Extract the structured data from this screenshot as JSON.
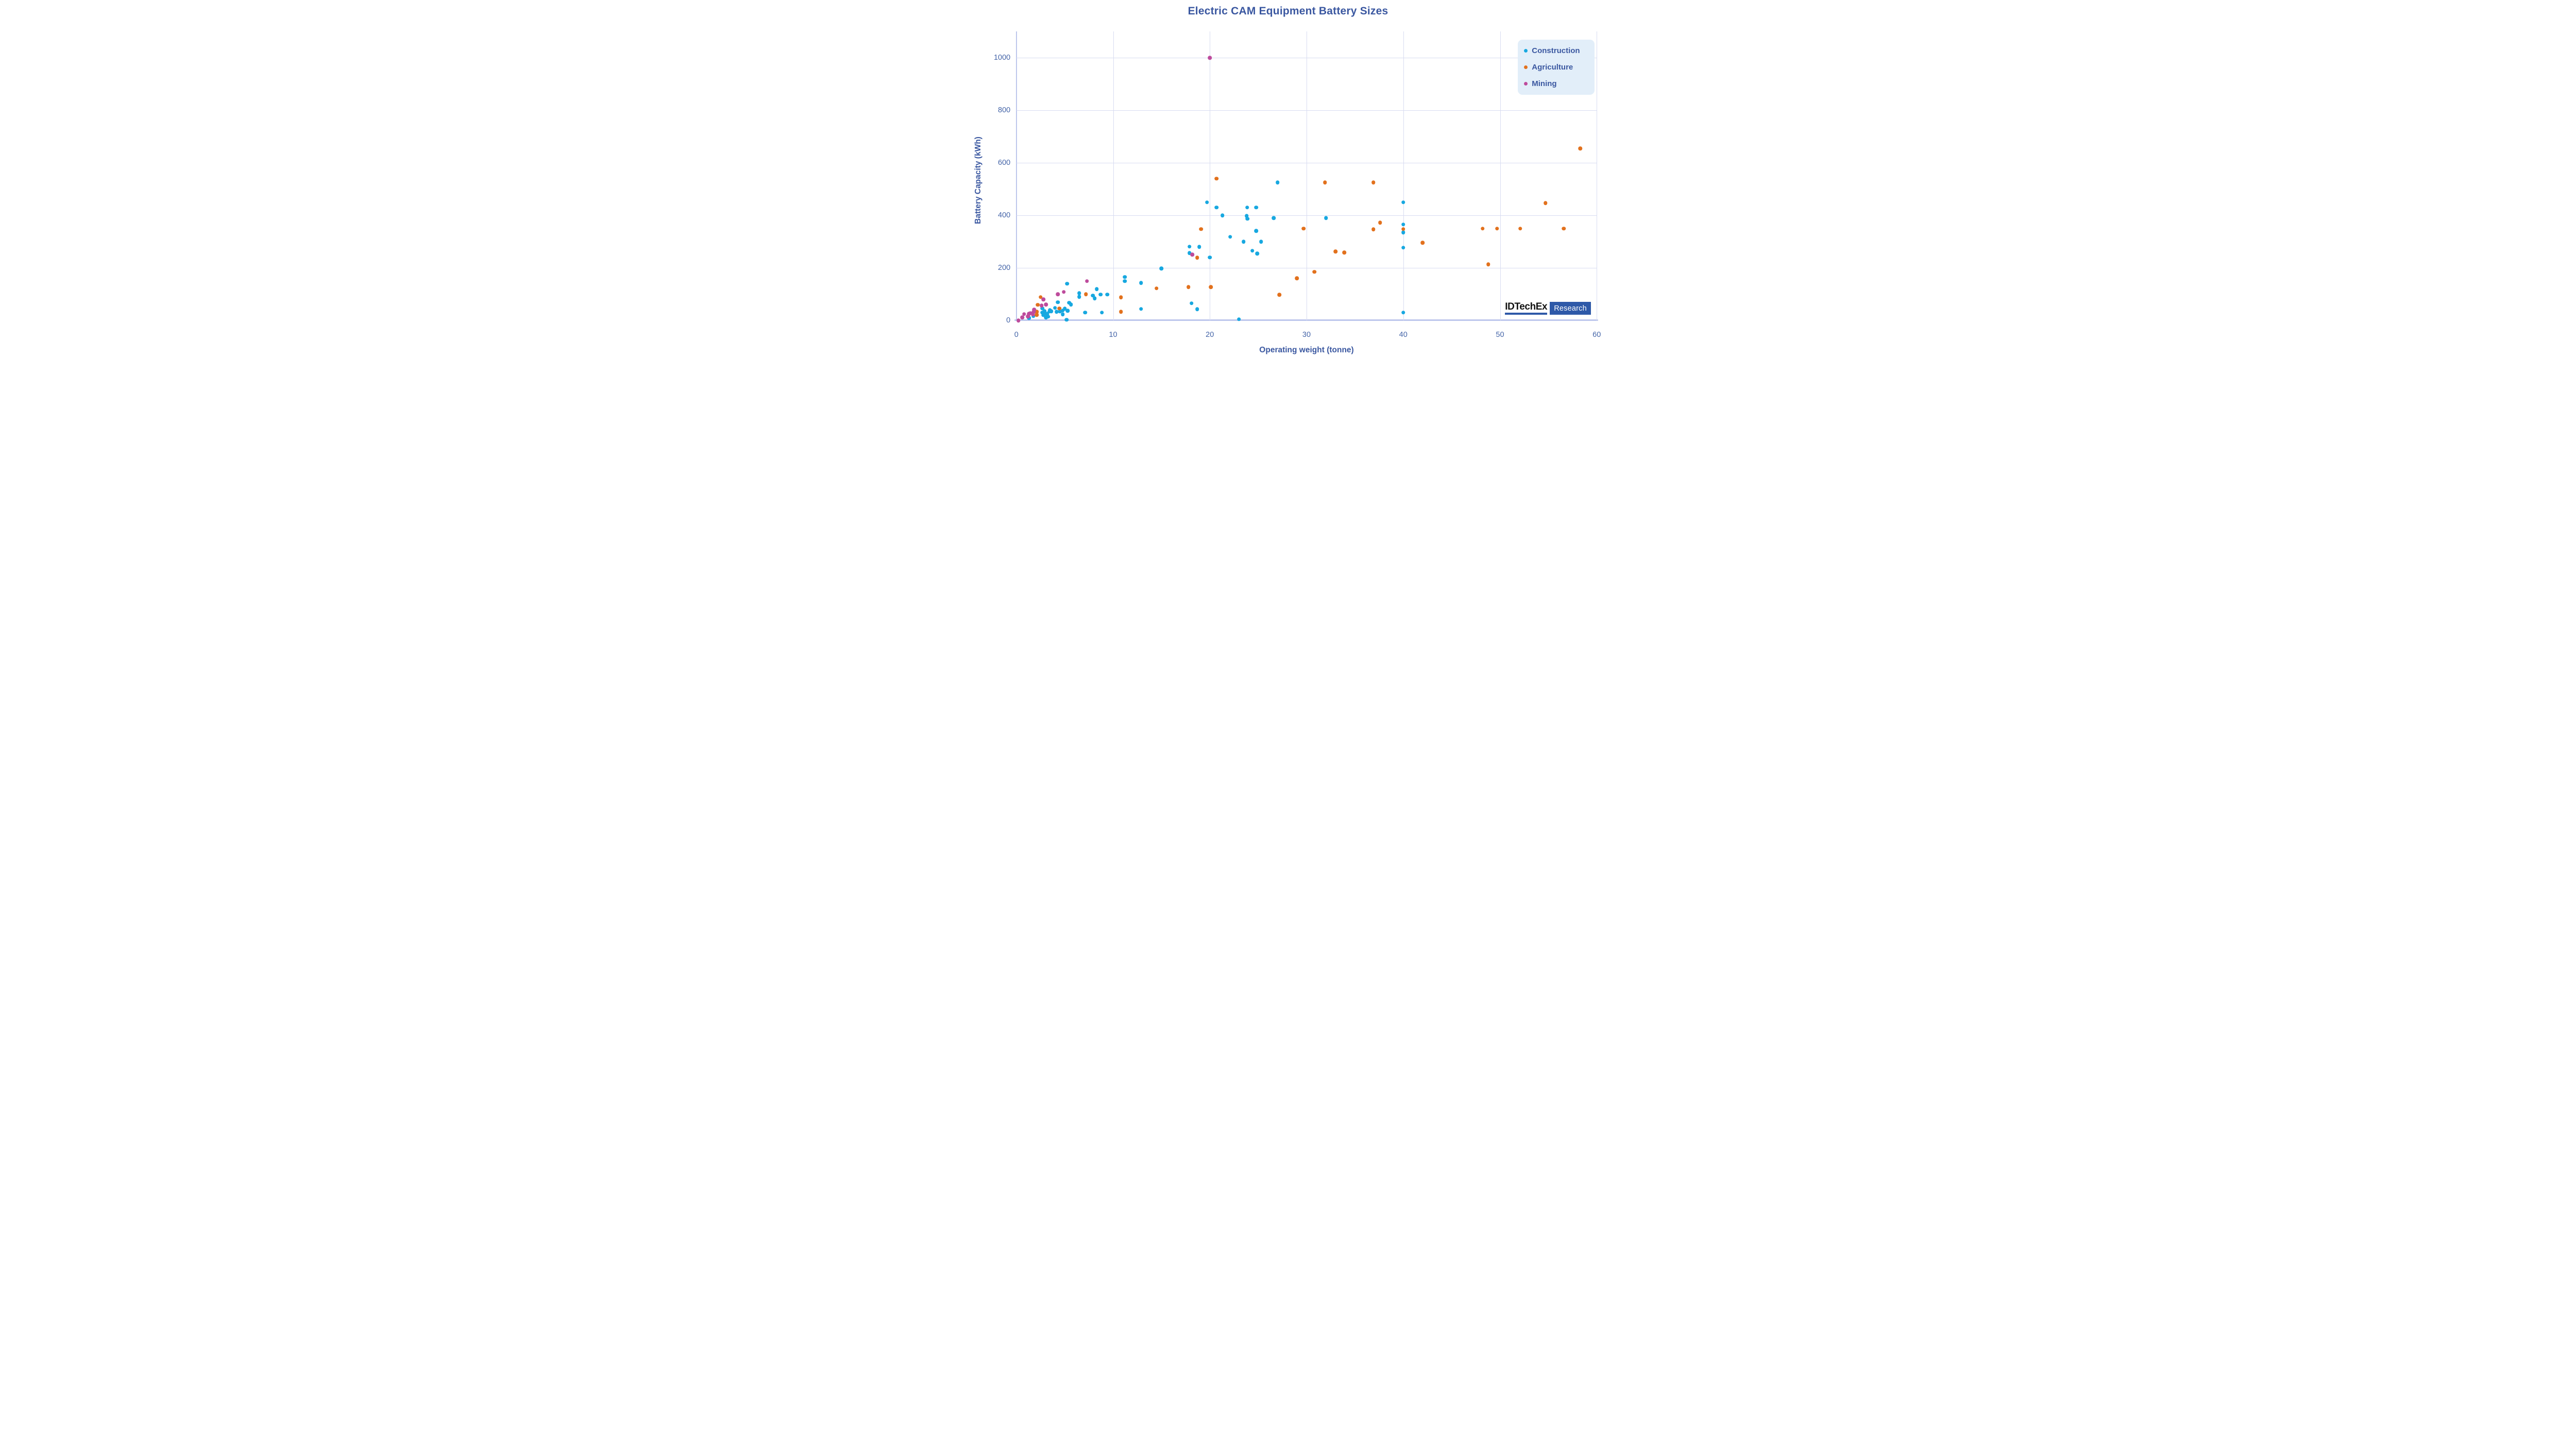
{
  "chart_data": {
    "type": "scatter",
    "title": "Electric CAM Equipment Battery Sizes",
    "xlabel": "Operating weight (tonne)",
    "ylabel": "Battery Capacity (kWh)",
    "xlim": [
      0,
      60
    ],
    "ylim": [
      0,
      1100
    ],
    "xticks": [
      0,
      10,
      20,
      30,
      40,
      50,
      60
    ],
    "yticks": [
      0,
      200,
      400,
      600,
      800,
      1000
    ],
    "grid": true,
    "legend_position": "top-right",
    "series": [
      {
        "name": "Construction",
        "color": "#17A8E0",
        "points": [
          [
            1.3,
            9
          ],
          [
            1.75,
            16
          ],
          [
            2.7,
            46
          ],
          [
            2.7,
            30
          ],
          [
            2.8,
            20
          ],
          [
            2.9,
            35
          ],
          [
            3.0,
            26
          ],
          [
            3.05,
            11
          ],
          [
            3.2,
            25
          ],
          [
            3.2,
            23
          ],
          [
            3.3,
            14
          ],
          [
            3.4,
            34
          ],
          [
            3.45,
            39
          ],
          [
            3.6,
            35
          ],
          [
            4.0,
            48
          ],
          [
            4.15,
            33
          ],
          [
            4.3,
            69
          ],
          [
            4.5,
            34
          ],
          [
            4.8,
            38
          ],
          [
            4.8,
            23
          ],
          [
            5.0,
            45
          ],
          [
            5.2,
            2
          ],
          [
            5.25,
            140
          ],
          [
            5.3,
            37
          ],
          [
            5.45,
            67
          ],
          [
            5.65,
            60
          ],
          [
            6.5,
            103
          ],
          [
            6.5,
            90
          ],
          [
            7.1,
            30
          ],
          [
            7.9,
            95
          ],
          [
            8.1,
            84
          ],
          [
            8.3,
            119
          ],
          [
            8.7,
            99
          ],
          [
            8.85,
            30
          ],
          [
            9.4,
            99
          ],
          [
            11.2,
            165
          ],
          [
            11.2,
            150
          ],
          [
            12.9,
            143
          ],
          [
            12.9,
            44
          ],
          [
            15,
            198
          ],
          [
            17.9,
            281
          ],
          [
            17.9,
            256
          ],
          [
            18.1,
            65
          ],
          [
            18.7,
            43
          ],
          [
            18.9,
            280
          ],
          [
            19.7,
            450
          ],
          [
            20,
            240
          ],
          [
            20.7,
            430
          ],
          [
            21.3,
            400
          ],
          [
            22.1,
            318
          ],
          [
            23,
            4
          ],
          [
            23.5,
            300
          ],
          [
            23.8,
            398
          ],
          [
            23.9,
            387
          ],
          [
            23.85,
            430
          ],
          [
            24.4,
            265
          ],
          [
            24.8,
            430
          ],
          [
            24.8,
            341
          ],
          [
            24.9,
            255
          ],
          [
            25.3,
            300
          ],
          [
            26.6,
            390
          ],
          [
            27,
            525
          ],
          [
            32,
            390
          ],
          [
            40,
            450
          ],
          [
            40,
            365
          ],
          [
            40,
            335
          ],
          [
            40,
            277
          ],
          [
            40,
            30
          ]
        ]
      },
      {
        "name": "Agriculture",
        "color": "#E2711D",
        "points": [
          [
            2.1,
            21
          ],
          [
            2.1,
            33
          ],
          [
            2.2,
            59
          ],
          [
            2.5,
            89
          ],
          [
            4.45,
            46
          ],
          [
            7.2,
            100
          ],
          [
            10.8,
            33
          ],
          [
            10.8,
            88
          ],
          [
            14.5,
            122
          ],
          [
            17.8,
            127
          ],
          [
            18.7,
            239
          ],
          [
            19.1,
            348
          ],
          [
            20.1,
            127
          ],
          [
            20.7,
            540
          ],
          [
            27.2,
            98
          ],
          [
            29,
            160
          ],
          [
            29.7,
            350
          ],
          [
            30.8,
            185
          ],
          [
            31.9,
            525
          ],
          [
            33,
            262
          ],
          [
            33.9,
            258
          ],
          [
            36.9,
            347
          ],
          [
            36.9,
            525
          ],
          [
            37.6,
            372
          ],
          [
            40,
            348
          ],
          [
            42,
            296
          ],
          [
            48.2,
            350
          ],
          [
            48.8,
            213
          ],
          [
            49.7,
            350
          ],
          [
            52.1,
            350
          ],
          [
            54.7,
            447
          ],
          [
            56.6,
            350
          ],
          [
            58.3,
            655
          ]
        ]
      },
      {
        "name": "Mining",
        "color": "#BE4B9C",
        "points": [
          [
            0.2,
            0
          ],
          [
            0.6,
            11
          ],
          [
            0.8,
            24
          ],
          [
            1.2,
            15
          ],
          [
            1.3,
            25
          ],
          [
            1.45,
            28
          ],
          [
            1.7,
            23
          ],
          [
            1.78,
            32
          ],
          [
            1.85,
            41
          ],
          [
            2.6,
            56
          ],
          [
            2.8,
            80
          ],
          [
            3.05,
            60
          ],
          [
            4.3,
            100
          ],
          [
            4.9,
            108
          ],
          [
            7.3,
            150
          ],
          [
            18.2,
            251
          ],
          [
            20,
            1000
          ]
        ]
      }
    ]
  },
  "logo": {
    "brand": "IDTechEx",
    "sub": "Research"
  },
  "colors": {
    "title_text": "#3A57A0",
    "axis_text": "#4565A8",
    "gridline": "#D8DCF1",
    "axis_line": "#BDC6EC",
    "legend_bg": "#E2EEF9",
    "logo_blue": "#2E59A8"
  }
}
